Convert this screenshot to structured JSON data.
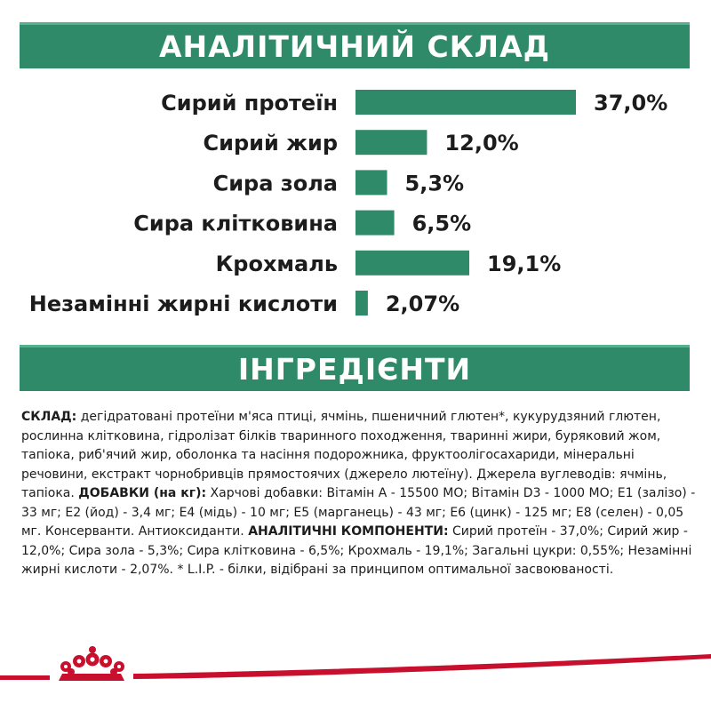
{
  "analysis_header": "АНАЛІТИЧНИЙ СКЛАД",
  "ingredients_header": "ІНГРЕДІЄНТИ",
  "colors": {
    "brand_green": "#2f8a69",
    "banner_highlight": "#56b28e",
    "logo_red": "#c8102e"
  },
  "chart_data": {
    "type": "bar",
    "orientation": "horizontal",
    "categories": [
      "Сирий протеїн",
      "Сирий жир",
      "Сира зола",
      "Сира клітковина",
      "Крохмаль",
      "Незамінні жирні кислоти"
    ],
    "values": [
      37.0,
      12.0,
      5.3,
      6.5,
      19.1,
      2.07
    ],
    "value_labels": [
      "37,0%",
      "12,0%",
      "5,3%",
      "6,5%",
      "19,1%",
      "2,07%"
    ],
    "xlim": [
      0,
      37.0
    ],
    "grid": false,
    "legend": "none"
  },
  "ingredients": {
    "composition_label": "СКЛАД:",
    "composition_text": " дегідратовані протеїни м'яса птиці, ячмінь, пшеничний глютен*, кукурудзяний глютен, рослинна клітковина, гідролізат білків тваринного походження, тваринні жири, буряковий жом, тапіока, риб'ячий жир, оболонка та насіння подорожника, фруктоолігосахариди, мінеральні речовини, екстракт чорнобривців прямостоячих (джерело лютеїну). Джерела вуглеводів: ячмінь, тапіока. ",
    "additives_label": "ДОБАВКИ (на кг):",
    "additives_text": " Харчові добавки: Вітамін А - 15500 МО; Вітамін D3 - 1000 МО; Е1 (залізо) - 33 мг; Е2 (йод) - 3,4 мг; Е4 (мідь) - 10 мг; Е5 (марганець) - 43 мг; Е6 (цинк) - 125 мг; Е8 (селен) - 0,05 мг. Консерванти. Антиоксиданти. ",
    "analytic_label": "АНАЛІТИЧНІ КОМПОНЕНТИ:",
    "analytic_text": " Сирий протеїн - 37,0%; Сирий жир - 12,0%; Сира зола - 5,3%; Сира клітковина - 6,5%; Крохмаль - 19,1%; Загальні цукри: 0,55%; Незамінні жирні кислоти - 2,07%. * L.I.P. - білки, відібрані за принципом оптимальної засвоюваності."
  },
  "footer_logo": "royal-crown-icon"
}
